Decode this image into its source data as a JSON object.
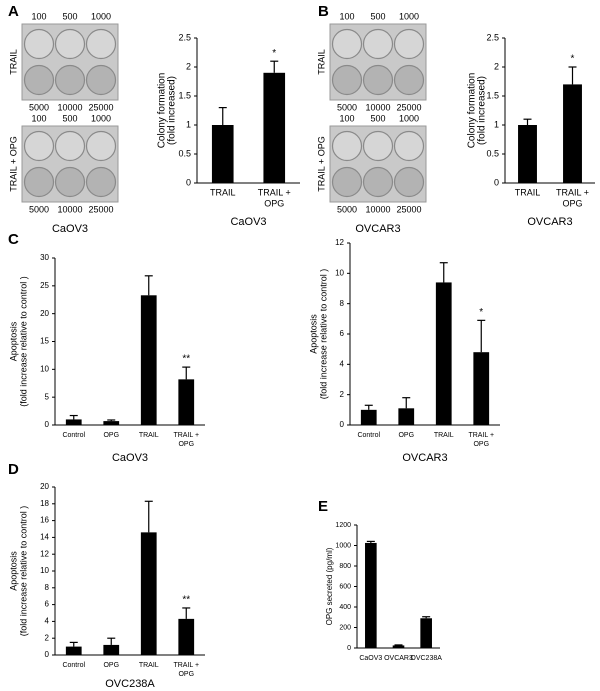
{
  "panel_labels": [
    "A",
    "B",
    "C",
    "D",
    "E"
  ],
  "plates": [
    {
      "top_labels": [
        "100",
        "500",
        "1000"
      ],
      "bottom_labels": [
        "5000",
        "10000",
        "25000"
      ],
      "side_label": "TRAIL"
    },
    {
      "top_labels": [
        "100",
        "500",
        "1000"
      ],
      "bottom_labels": [
        "5000",
        "10000",
        "25000"
      ],
      "side_label": "TRAIL + OPG"
    },
    {
      "top_labels": [
        "100",
        "500",
        "1000"
      ],
      "bottom_labels": [
        "5000",
        "10000",
        "25000"
      ],
      "side_label": "TRAIL"
    },
    {
      "top_labels": [
        "100",
        "500",
        "1000"
      ],
      "bottom_labels": [
        "5000",
        "10000",
        "25000"
      ],
      "side_label": "TRAIL + OPG"
    }
  ],
  "plate_captions": [
    "CaOV3",
    "OVCAR3"
  ],
  "chart_data": [
    {
      "type": "bar",
      "caption": "CaOV3",
      "ylabel": [
        "Colony formation",
        "(fold increased)"
      ],
      "categories": [
        "TRAIL",
        [
          "TRAIL +",
          "OPG"
        ]
      ],
      "values": [
        1,
        1.9
      ],
      "errors": [
        0.3,
        0.2
      ],
      "value_annotations": [
        null,
        "*"
      ],
      "color": "#000000",
      "ylim": [
        0,
        2.5
      ],
      "yticks": [
        0,
        0.5,
        1,
        1.5,
        2,
        2.5
      ]
    },
    {
      "type": "bar",
      "caption": "OVCAR3",
      "ylabel": [
        "Colony formation",
        "(fold increased)"
      ],
      "categories": [
        "TRAIL",
        [
          "TRAIL +",
          "OPG"
        ]
      ],
      "values": [
        1,
        1.7
      ],
      "errors": [
        0.1,
        0.3
      ],
      "value_annotations": [
        null,
        "*"
      ],
      "color": "#000000",
      "ylim": [
        0,
        2.5
      ],
      "yticks": [
        0,
        0.5,
        1,
        1.5,
        2,
        2.5
      ]
    },
    {
      "type": "bar",
      "caption": "CaOV3",
      "ylabel": [
        "Apoptosis",
        "(fold increase relative to control )"
      ],
      "categories": [
        "Control",
        "OPG",
        "TRAIL",
        [
          "TRAIL +",
          "OPG"
        ]
      ],
      "values": [
        1,
        0.7,
        23.3,
        8.2
      ],
      "errors": [
        0.7,
        0.2,
        3.5,
        2.2
      ],
      "value_annotations": [
        null,
        null,
        null,
        "**"
      ],
      "color": "#000000",
      "ylim": [
        0,
        30
      ],
      "yticks": [
        0,
        5,
        10,
        15,
        20,
        25,
        30
      ]
    },
    {
      "type": "bar",
      "caption": "OVCAR3",
      "ylabel": [
        "Apoptosis",
        "(fold increase relative to control )"
      ],
      "categories": [
        "Control",
        "OPG",
        "TRAIL",
        [
          "TRAIL +",
          "OPG"
        ]
      ],
      "values": [
        1,
        1.1,
        9.4,
        4.8
      ],
      "errors": [
        0.3,
        0.7,
        1.3,
        2.1
      ],
      "value_annotations": [
        null,
        null,
        null,
        "*"
      ],
      "color": "#000000",
      "ylim": [
        0,
        12
      ],
      "yticks": [
        0,
        2,
        4,
        6,
        8,
        10,
        12
      ]
    },
    {
      "type": "bar",
      "caption": "OVC238A",
      "ylabel": [
        "Apoptosis",
        "(fold increase relative to control )"
      ],
      "categories": [
        "Control",
        "OPG",
        "TRAIL",
        [
          "TRAIL +",
          "OPG"
        ]
      ],
      "values": [
        1,
        1.2,
        14.6,
        4.3
      ],
      "errors": [
        0.5,
        0.8,
        3.7,
        1.3
      ],
      "value_annotations": [
        null,
        null,
        null,
        "**"
      ],
      "color": "#000000",
      "ylim": [
        0,
        20
      ],
      "yticks": [
        0,
        2,
        4,
        6,
        8,
        10,
        12,
        14,
        16,
        18,
        20
      ]
    },
    {
      "type": "bar",
      "ylabel": [
        "OPG secreted (pg/ml)"
      ],
      "categories": [
        "CaOV3",
        "OVCAR3",
        "OVC238A"
      ],
      "values": [
        1025,
        25,
        290
      ],
      "errors": [
        15,
        5,
        15
      ],
      "color": "#000000",
      "ylim": [
        0,
        1200
      ],
      "yticks": [
        0,
        200,
        400,
        600,
        800,
        1000,
        1200
      ]
    }
  ]
}
